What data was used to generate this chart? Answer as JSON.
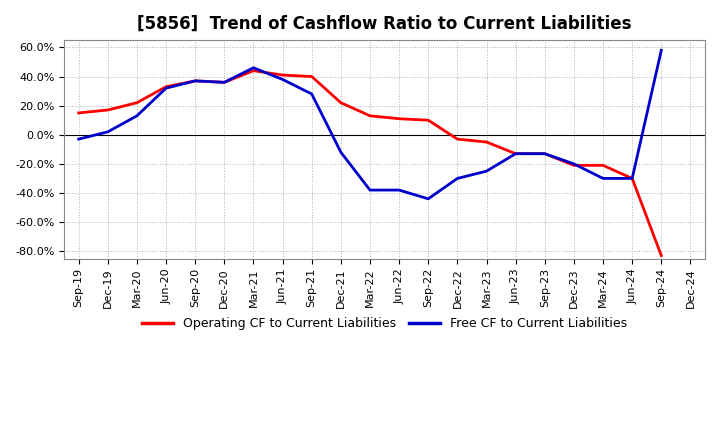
{
  "title": "[5856]  Trend of Cashflow Ratio to Current Liabilities",
  "x_labels": [
    "Sep-19",
    "Dec-19",
    "Mar-20",
    "Jun-20",
    "Sep-20",
    "Dec-20",
    "Mar-21",
    "Jun-21",
    "Sep-21",
    "Dec-21",
    "Mar-22",
    "Jun-22",
    "Sep-22",
    "Dec-22",
    "Mar-23",
    "Jun-23",
    "Sep-23",
    "Dec-23",
    "Mar-24",
    "Jun-24",
    "Sep-24",
    "Dec-24"
  ],
  "operating_cf": [
    15.0,
    17.0,
    22.0,
    33.0,
    37.0,
    36.0,
    44.0,
    41.0,
    40.0,
    22.0,
    13.0,
    11.0,
    10.0,
    -3.0,
    -5.0,
    -13.0,
    -13.0,
    -21.0,
    -21.0,
    -30.0,
    -83.0,
    null
  ],
  "free_cf": [
    -3.0,
    2.0,
    13.0,
    32.0,
    37.0,
    36.0,
    46.0,
    38.0,
    28.0,
    -12.0,
    -38.0,
    -38.0,
    -44.0,
    -30.0,
    -25.0,
    -13.0,
    -13.0,
    -20.0,
    -30.0,
    -30.0,
    58.0,
    null
  ],
  "operating_cf_color": "#ff0000",
  "free_cf_color": "#0000cc",
  "ylim_pct": [
    -85.0,
    65.0
  ],
  "yticks_pct": [
    -80.0,
    -60.0,
    -40.0,
    -20.0,
    0.0,
    20.0,
    40.0,
    60.0
  ],
  "ytick_labels": [
    "-80.0%",
    "-60.0%",
    "-40.0%",
    "-20.0%",
    "0.0%",
    "20.0%",
    "40.0%",
    "60.0%"
  ],
  "legend_operating": "Operating CF to Current Liabilities",
  "legend_free": "Free CF to Current Liabilities",
  "background_color": "#ffffff",
  "grid_color": "#b0b0b0",
  "line_width": 2.0,
  "title_fontsize": 12,
  "legend_fontsize": 9,
  "tick_fontsize": 8
}
